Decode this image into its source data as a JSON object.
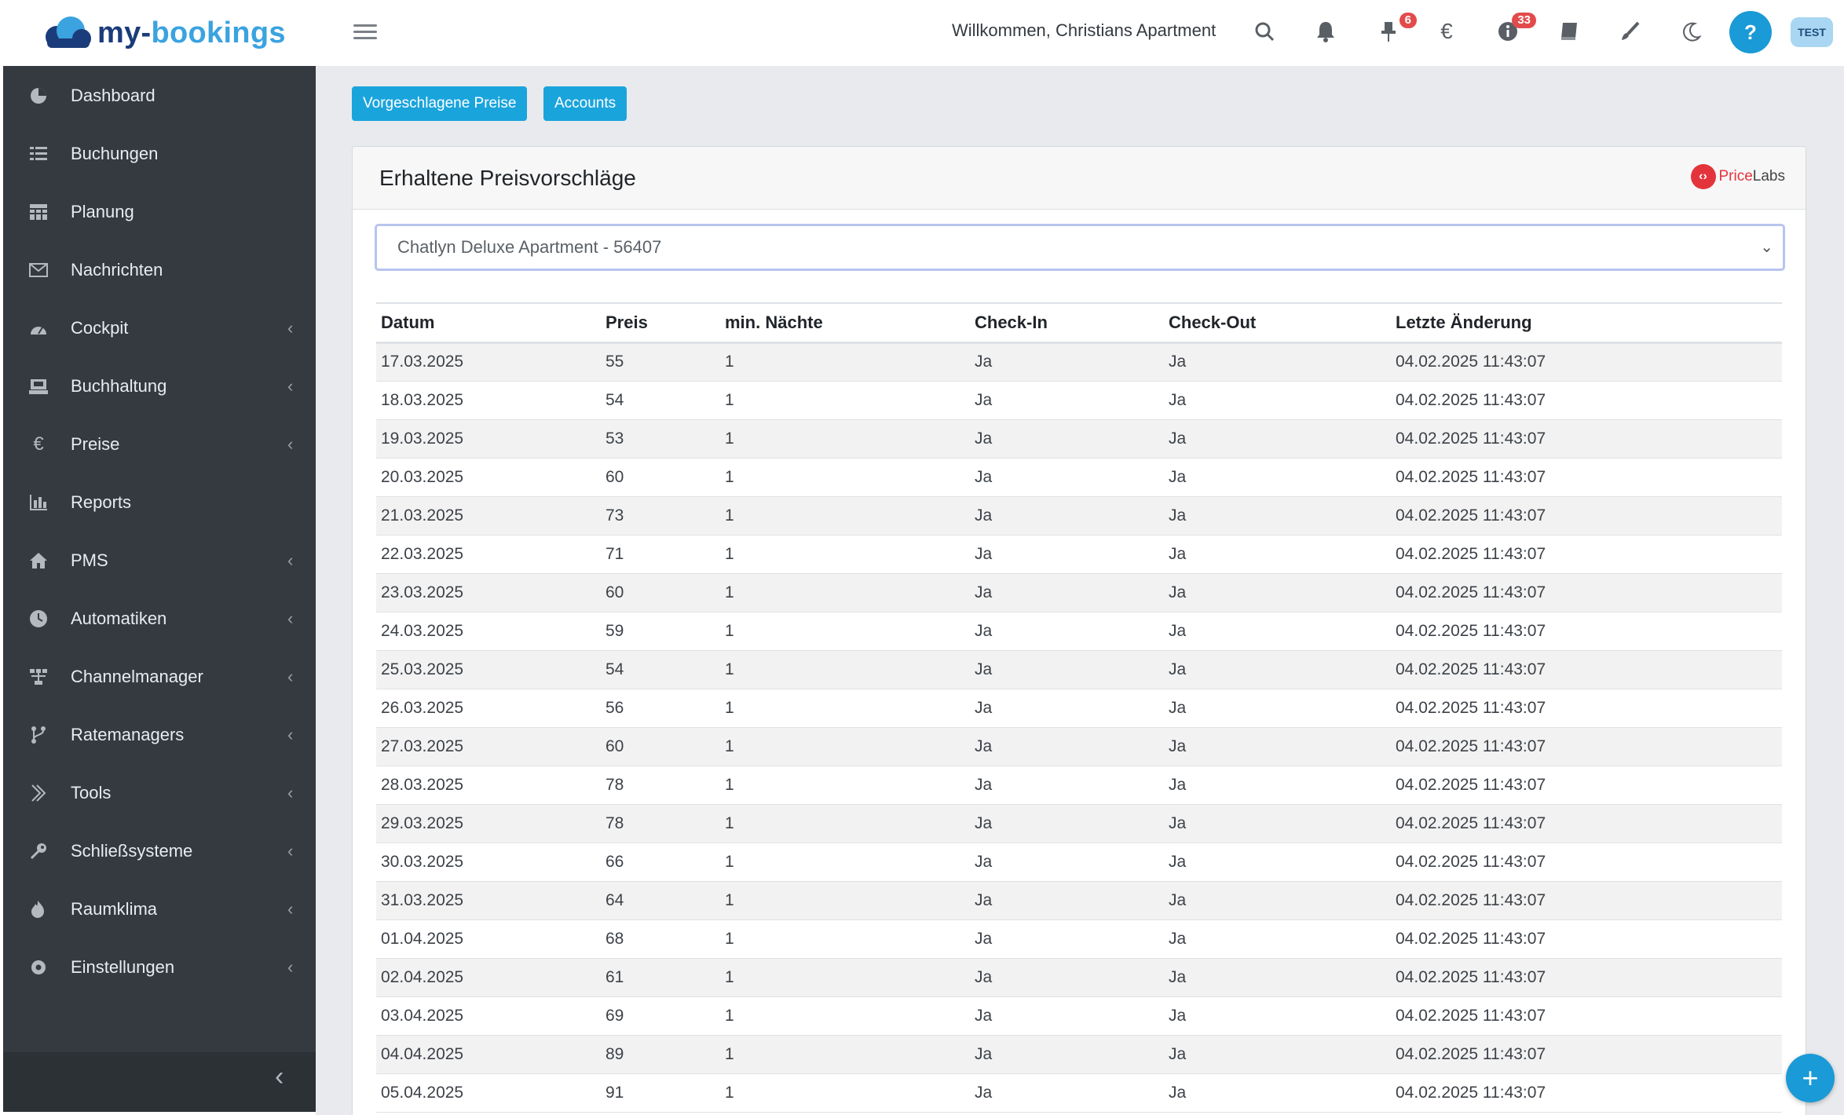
{
  "header": {
    "brand_prefix": "my-",
    "brand_suffix": "bookings",
    "welcome": "Willkommen, Christians Apartment",
    "icons": [
      {
        "name": "search-icon"
      },
      {
        "name": "bell-icon"
      },
      {
        "name": "pin-icon",
        "badge": "6"
      },
      {
        "name": "euro-icon"
      },
      {
        "name": "info-icon",
        "badge": "33"
      },
      {
        "name": "book-icon"
      },
      {
        "name": "brush-icon"
      },
      {
        "name": "moon-icon"
      }
    ],
    "help_label": "?",
    "avatar_label": "TEST",
    "badge_color": "#e34b4b",
    "accent_color": "#1a9ad6"
  },
  "sidebar": {
    "items": [
      {
        "label": "Dashboard",
        "icon": "dashboard-icon",
        "has_submenu": false
      },
      {
        "label": "Buchungen",
        "icon": "list-icon",
        "has_submenu": false
      },
      {
        "label": "Planung",
        "icon": "calendar-grid-icon",
        "has_submenu": false
      },
      {
        "label": "Nachrichten",
        "icon": "envelope-icon",
        "has_submenu": false
      },
      {
        "label": "Cockpit",
        "icon": "gauge-icon",
        "has_submenu": true
      },
      {
        "label": "Buchhaltung",
        "icon": "cash-register-icon",
        "has_submenu": true
      },
      {
        "label": "Preise",
        "icon": "euro-icon",
        "has_submenu": true
      },
      {
        "label": "Reports",
        "icon": "bar-chart-icon",
        "has_submenu": false
      },
      {
        "label": "PMS",
        "icon": "home-icon",
        "has_submenu": true
      },
      {
        "label": "Automatiken",
        "icon": "clock-icon",
        "has_submenu": true
      },
      {
        "label": "Channelmanager",
        "icon": "network-icon",
        "has_submenu": true
      },
      {
        "label": "Ratemanagers",
        "icon": "branch-icon",
        "has_submenu": true
      },
      {
        "label": "Tools",
        "icon": "chevrons-right-icon",
        "has_submenu": true
      },
      {
        "label": "Schließsysteme",
        "icon": "key-icon",
        "has_submenu": true
      },
      {
        "label": "Raumklima",
        "icon": "flame-icon",
        "has_submenu": true
      },
      {
        "label": "Einstellungen",
        "icon": "gear-icon",
        "has_submenu": true
      }
    ],
    "collapse_icon": "chevron-left-icon"
  },
  "toolbar": {
    "suggested_prices_label": "Vorgeschlagene Preise",
    "accounts_label": "Accounts"
  },
  "card": {
    "title": "Erhaltene Preisvorschläge",
    "provider_prefix": "Price",
    "provider_suffix": "Labs",
    "selected_property": "Chatlyn Deluxe Apartment - 56407"
  },
  "table": {
    "headers": [
      "Datum",
      "Preis",
      "min. Nächte",
      "Check-In",
      "Check-Out",
      "Letzte Änderung"
    ],
    "rows": [
      [
        "17.03.2025",
        "55",
        "1",
        "Ja",
        "Ja",
        "04.02.2025 11:43:07"
      ],
      [
        "18.03.2025",
        "54",
        "1",
        "Ja",
        "Ja",
        "04.02.2025 11:43:07"
      ],
      [
        "19.03.2025",
        "53",
        "1",
        "Ja",
        "Ja",
        "04.02.2025 11:43:07"
      ],
      [
        "20.03.2025",
        "60",
        "1",
        "Ja",
        "Ja",
        "04.02.2025 11:43:07"
      ],
      [
        "21.03.2025",
        "73",
        "1",
        "Ja",
        "Ja",
        "04.02.2025 11:43:07"
      ],
      [
        "22.03.2025",
        "71",
        "1",
        "Ja",
        "Ja",
        "04.02.2025 11:43:07"
      ],
      [
        "23.03.2025",
        "60",
        "1",
        "Ja",
        "Ja",
        "04.02.2025 11:43:07"
      ],
      [
        "24.03.2025",
        "59",
        "1",
        "Ja",
        "Ja",
        "04.02.2025 11:43:07"
      ],
      [
        "25.03.2025",
        "54",
        "1",
        "Ja",
        "Ja",
        "04.02.2025 11:43:07"
      ],
      [
        "26.03.2025",
        "56",
        "1",
        "Ja",
        "Ja",
        "04.02.2025 11:43:07"
      ],
      [
        "27.03.2025",
        "60",
        "1",
        "Ja",
        "Ja",
        "04.02.2025 11:43:07"
      ],
      [
        "28.03.2025",
        "78",
        "1",
        "Ja",
        "Ja",
        "04.02.2025 11:43:07"
      ],
      [
        "29.03.2025",
        "78",
        "1",
        "Ja",
        "Ja",
        "04.02.2025 11:43:07"
      ],
      [
        "30.03.2025",
        "66",
        "1",
        "Ja",
        "Ja",
        "04.02.2025 11:43:07"
      ],
      [
        "31.03.2025",
        "64",
        "1",
        "Ja",
        "Ja",
        "04.02.2025 11:43:07"
      ],
      [
        "01.04.2025",
        "68",
        "1",
        "Ja",
        "Ja",
        "04.02.2025 11:43:07"
      ],
      [
        "02.04.2025",
        "61",
        "1",
        "Ja",
        "Ja",
        "04.02.2025 11:43:07"
      ],
      [
        "03.04.2025",
        "69",
        "1",
        "Ja",
        "Ja",
        "04.02.2025 11:43:07"
      ],
      [
        "04.04.2025",
        "89",
        "1",
        "Ja",
        "Ja",
        "04.02.2025 11:43:07"
      ],
      [
        "05.04.2025",
        "91",
        "1",
        "Ja",
        "Ja",
        "04.02.2025 11:43:07"
      ]
    ]
  },
  "fab": {
    "label": "+"
  }
}
